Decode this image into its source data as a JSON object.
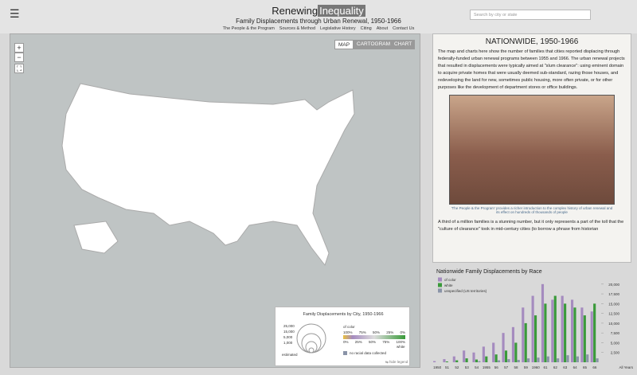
{
  "header": {
    "menu_icon": "☰",
    "title_a": "Renewing",
    "title_b": "Inequality",
    "subtitle": "Family Displacements through Urban Renewal, 1950-1966",
    "nav": [
      "The People & the Program",
      "Sources & Method",
      "Legislative History",
      "Citing",
      "About",
      "Contact Us"
    ],
    "search_placeholder": "Search by city or state"
  },
  "map": {
    "buttons": [
      "MAP",
      "CARTOGRAM",
      "CHART"
    ],
    "zoom": [
      "+",
      "−",
      "⛶"
    ],
    "legend": {
      "title": "Family Displacements by City, 1950-1966",
      "sizes": [
        "25,000",
        "15,000",
        "5,000",
        "1,000"
      ],
      "estimated": "estimated",
      "of_color": "of color",
      "white": "white",
      "pct_top": [
        "100%",
        "75%",
        "50%",
        "25%",
        "0%"
      ],
      "pct_bottom": [
        "0%",
        "25%",
        "50%",
        "75%",
        "100%"
      ],
      "no_data": "no racial data collected",
      "hide": "⇆ hide legend"
    }
  },
  "side": {
    "title": "NATIONWIDE, 1950-1966",
    "paragraph_1": "The map and charts here show the number of families that cities reported displacing through federally-funded urban renewal programs between 1955 and 1966. The urban renewal projects that resulted in displacements were typically aimed at \"slum clearance\": using eminent domain to acquire private homes that were usually deemed sub-standard, razing those houses, and redeveloping the land for new, sometimes public housing, more often private, or for other purposes like the development of department stores or office buildings.",
    "caption": "'The People & the Program' provides a richer introduction to the complex history of urban renewal and its effect on hundreds of thousands of people",
    "paragraph_2": "A third of a million families is a stunning number, but it only represents a part of the toll that the \"culture of clearance\" took in mid-century cities (to borrow a phrase from historian"
  },
  "chart_data": {
    "type": "bar",
    "title": "Nationwide Family Displacements by Race",
    "categories": [
      "1950",
      "51",
      "52",
      "53",
      "54",
      "1955",
      "56",
      "57",
      "58",
      "59",
      "1960",
      "61",
      "62",
      "63",
      "64",
      "65",
      "66"
    ],
    "all_years_label": "All Years",
    "series": [
      {
        "name": "of color",
        "color": "#a58bbf",
        "values": [
          300,
          800,
          1500,
          3000,
          2500,
          4000,
          5000,
          7500,
          9000,
          14000,
          17000,
          20000,
          16000,
          17000,
          16000,
          14000,
          13000
        ]
      },
      {
        "name": "white",
        "color": "#3a9a3a",
        "values": [
          0,
          200,
          500,
          1000,
          700,
          1500,
          2000,
          3000,
          5000,
          10000,
          12000,
          15000,
          17000,
          15000,
          14000,
          12000,
          15000
        ]
      },
      {
        "name": "unspecified (US territories)",
        "color": "#8a94a8",
        "values": [
          0,
          0,
          0,
          0,
          300,
          0,
          500,
          800,
          600,
          1000,
          1200,
          1500,
          1000,
          1800,
          1500,
          2000,
          1000
        ]
      }
    ],
    "ylim": [
      0,
      22000
    ],
    "yticks": [
      {
        "value": 2500,
        "label": "2,500"
      },
      {
        "value": 5000,
        "label": "5,000"
      },
      {
        "value": 7500,
        "label": "7,500"
      },
      {
        "value": 10000,
        "label": "10,000"
      },
      {
        "value": 12500,
        "label": "12,500"
      },
      {
        "value": 15000,
        "label": "15,000"
      },
      {
        "value": 17500,
        "label": "17,500"
      },
      {
        "value": 20000,
        "label": "20,000"
      }
    ],
    "grid": false
  }
}
